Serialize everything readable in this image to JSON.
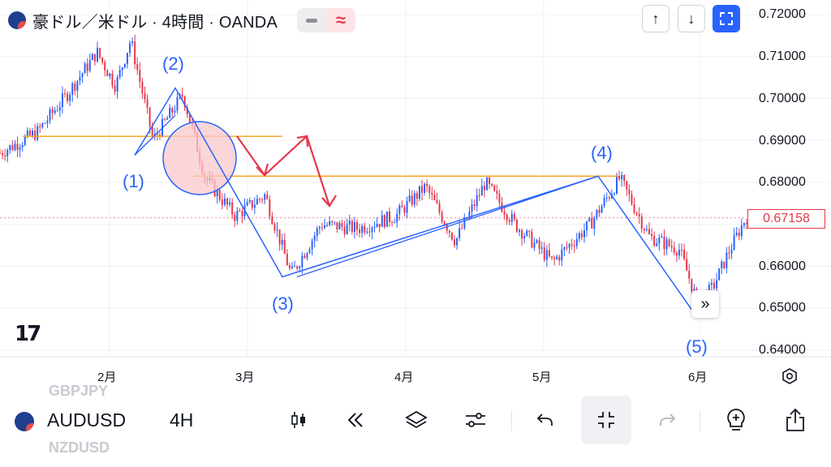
{
  "header": {
    "title": "豪ドル／米ドル · 4時間 · OANDA",
    "flag_icon": "au-us-flag-icon",
    "pill_left_icon": "minus-icon",
    "pill_right_glyph": "≈",
    "pill_right_icon": "approx-icon"
  },
  "top_right_buttons": {
    "up_glyph": "↑",
    "down_glyph": "↓",
    "fullscreen_icon": "fullscreen-icon"
  },
  "price_axis": {
    "labels": [
      "0.72000",
      "0.71000",
      "0.70000",
      "0.69000",
      "0.68000",
      "0.67000",
      "0.66000",
      "0.65000",
      "0.64000"
    ],
    "current_price": "0.67158",
    "current_price_color": "#e5374a"
  },
  "time_axis": {
    "labels": [
      "2月",
      "3月",
      "4月",
      "5月",
      "6月"
    ]
  },
  "wave_labels": [
    "(1)",
    "(2)",
    "(3)",
    "(4)",
    "(5)"
  ],
  "logo_text": "17",
  "scroll_glyph": "»",
  "colors": {
    "up_candle": "#2962ff",
    "down_candle": "#e5374a",
    "trendline": "#2962ff",
    "horizontal_line": "#f5a623",
    "arrow": "#e5374a",
    "circle_fill": "#f8c8cc"
  },
  "chart_data": {
    "type": "candlestick",
    "instrument": "AUDUSD",
    "interval": "4H",
    "ylim": [
      0.6385,
      0.7225
    ],
    "x_ticks": [
      "2月",
      "3月",
      "4月",
      "5月",
      "6月"
    ],
    "y_ticks": [
      0.72,
      0.71,
      0.7,
      0.69,
      0.68,
      0.67,
      0.66,
      0.65,
      0.64
    ],
    "last_price": 0.67158,
    "price_path": [
      {
        "t": 0,
        "p": 0.687
      },
      {
        "t": 0.05,
        "p": 0.692
      },
      {
        "t": 0.09,
        "p": 0.701
      },
      {
        "t": 0.13,
        "p": 0.711
      },
      {
        "t": 0.155,
        "p": 0.703
      },
      {
        "t": 0.175,
        "p": 0.714
      },
      {
        "t": 0.205,
        "p": 0.69
      },
      {
        "t": 0.245,
        "p": 0.701
      },
      {
        "t": 0.275,
        "p": 0.681
      },
      {
        "t": 0.315,
        "p": 0.672
      },
      {
        "t": 0.355,
        "p": 0.677
      },
      {
        "t": 0.39,
        "p": 0.658
      },
      {
        "t": 0.43,
        "p": 0.67
      },
      {
        "t": 0.48,
        "p": 0.669
      },
      {
        "t": 0.53,
        "p": 0.672
      },
      {
        "t": 0.57,
        "p": 0.679
      },
      {
        "t": 0.61,
        "p": 0.666
      },
      {
        "t": 0.65,
        "p": 0.68
      },
      {
        "t": 0.69,
        "p": 0.67
      },
      {
        "t": 0.74,
        "p": 0.661
      },
      {
        "t": 0.79,
        "p": 0.67
      },
      {
        "t": 0.83,
        "p": 0.681
      },
      {
        "t": 0.87,
        "p": 0.667
      },
      {
        "t": 0.91,
        "p": 0.664
      },
      {
        "t": 0.935,
        "p": 0.651
      },
      {
        "t": 0.955,
        "p": 0.655
      },
      {
        "t": 0.975,
        "p": 0.663
      },
      {
        "t": 1.0,
        "p": 0.672
      }
    ],
    "horizontal_lines": [
      0.691,
      0.6815
    ],
    "waves": [
      {
        "label": "(1)",
        "price": 0.6865
      },
      {
        "label": "(2)",
        "price": 0.7025
      },
      {
        "label": "(3)",
        "price": 0.6575
      },
      {
        "label": "(4)",
        "price": 0.6815
      },
      {
        "label": "(5)",
        "price": 0.6495
      }
    ]
  },
  "toolbar": {
    "ghost_top": "GBPJPY",
    "ghost_bottom": "NZDUSD",
    "symbol": "AUDUSD",
    "interval": "4H",
    "icons": [
      "candles-icon",
      "rewind-icon",
      "layers-icon",
      "sliders-icon",
      "undo-icon",
      "collapse-icon",
      "redo-icon",
      "bulb-plus-icon",
      "share-icon"
    ]
  }
}
